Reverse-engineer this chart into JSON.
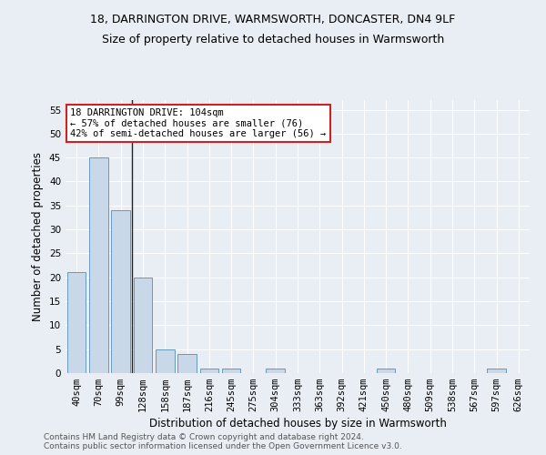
{
  "title1": "18, DARRINGTON DRIVE, WARMSWORTH, DONCASTER, DN4 9LF",
  "title2": "Size of property relative to detached houses in Warmsworth",
  "xlabel": "Distribution of detached houses by size in Warmsworth",
  "ylabel": "Number of detached properties",
  "categories": [
    "40sqm",
    "70sqm",
    "99sqm",
    "128sqm",
    "158sqm",
    "187sqm",
    "216sqm",
    "245sqm",
    "275sqm",
    "304sqm",
    "333sqm",
    "363sqm",
    "392sqm",
    "421sqm",
    "450sqm",
    "480sqm",
    "509sqm",
    "538sqm",
    "567sqm",
    "597sqm",
    "626sqm"
  ],
  "values": [
    21,
    45,
    34,
    20,
    5,
    4,
    1,
    1,
    0,
    1,
    0,
    0,
    0,
    0,
    1,
    0,
    0,
    0,
    0,
    1,
    0
  ],
  "bar_color": "#c8d8e8",
  "bar_edge_color": "#6699bb",
  "vline_x": 2.5,
  "vline_color": "#222222",
  "annotation_line1": "18 DARRINGTON DRIVE: 104sqm",
  "annotation_line2": "← 57% of detached houses are smaller (76)",
  "annotation_line3": "42% of semi-detached houses are larger (56) →",
  "annotation_box_color": "#ffffff",
  "annotation_box_edge": "#cc2222",
  "ylim": [
    0,
    57
  ],
  "yticks": [
    0,
    5,
    10,
    15,
    20,
    25,
    30,
    35,
    40,
    45,
    50,
    55
  ],
  "background_color": "#e8eef4",
  "grid_color": "#ffffff",
  "footer1": "Contains HM Land Registry data © Crown copyright and database right 2024.",
  "footer2": "Contains public sector information licensed under the Open Government Licence v3.0.",
  "title1_fontsize": 9,
  "title2_fontsize": 9,
  "xlabel_fontsize": 8.5,
  "ylabel_fontsize": 8.5,
  "tick_fontsize": 7.5,
  "annotation_fontsize": 7.5,
  "footer_fontsize": 6.5
}
